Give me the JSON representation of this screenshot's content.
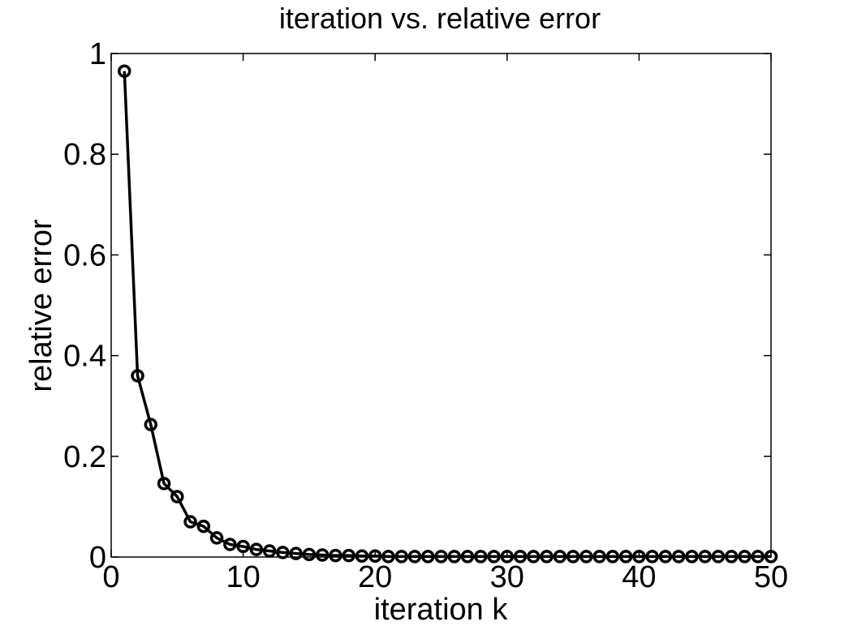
{
  "chart_data": {
    "type": "line",
    "title": "iteration  vs.  relative error",
    "xlabel": "iteration k",
    "ylabel": "relative error",
    "xlim": [
      0,
      50
    ],
    "ylim": [
      0,
      1
    ],
    "xticks": [
      0,
      10,
      20,
      30,
      40,
      50
    ],
    "yticks": [
      0,
      0.2,
      0.4,
      0.6,
      0.8,
      1
    ],
    "xtick_labels": [
      "0",
      "10",
      "20",
      "30",
      "40",
      "50"
    ],
    "ytick_labels": [
      "0",
      "0.2",
      "0.4",
      "0.6",
      "0.8",
      "1"
    ],
    "grid": false,
    "marker": "circle",
    "line_color": "#000000",
    "series": [
      {
        "x": [
          1,
          2,
          3,
          4,
          5,
          6,
          7,
          8,
          9,
          10,
          11,
          12,
          13,
          14,
          15,
          16,
          17,
          18,
          19,
          20,
          21,
          22,
          23,
          24,
          25,
          26,
          27,
          28,
          29,
          30,
          31,
          32,
          33,
          34,
          35,
          36,
          37,
          38,
          39,
          40,
          41,
          42,
          43,
          44,
          45,
          46,
          47,
          48,
          49,
          50
        ],
        "values": [
          0.965,
          0.36,
          0.263,
          0.146,
          0.12,
          0.07,
          0.061,
          0.038,
          0.025,
          0.021,
          0.015,
          0.012,
          0.009,
          0.007,
          0.005,
          0.004,
          0.003,
          0.003,
          0.002,
          0.002,
          0.001,
          0.001,
          0.001,
          0.001,
          0.001,
          0.001,
          0.001,
          0.001,
          0.001,
          0.001,
          0.001,
          0.001,
          0.001,
          0.001,
          0.001,
          0.001,
          0.001,
          0.001,
          0.001,
          0.001,
          0.001,
          0.001,
          0.001,
          0.001,
          0.001,
          0.001,
          0.001,
          0.001,
          0.001,
          0.001
        ]
      }
    ]
  }
}
